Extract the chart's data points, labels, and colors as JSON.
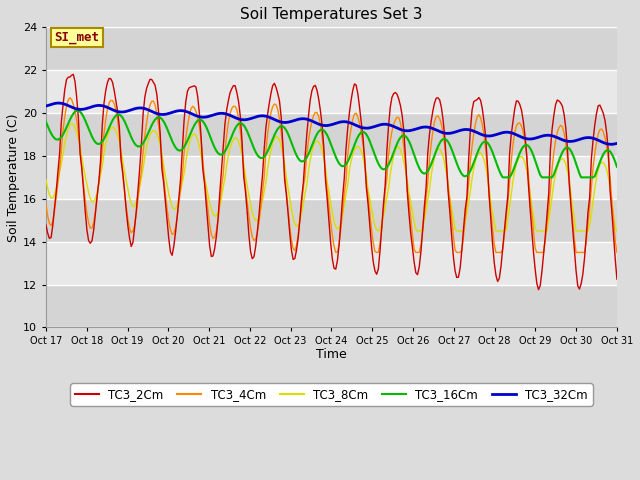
{
  "title": "Soil Temperatures Set 3",
  "xlabel": "Time",
  "ylabel": "Soil Temperature (C)",
  "ylim": [
    10,
    24
  ],
  "yticks": [
    10,
    12,
    14,
    16,
    18,
    20,
    22,
    24
  ],
  "xtick_labels": [
    "Oct 17",
    "Oct 18",
    "Oct 19",
    "Oct 20",
    "Oct 21",
    "Oct 22",
    "Oct 23",
    "Oct 24",
    "Oct 25",
    "Oct 26",
    "Oct 27",
    "Oct 28",
    "Oct 29",
    "Oct 30",
    "Oct 31"
  ],
  "series_colors": {
    "TC3_2Cm": "#CC0000",
    "TC3_4Cm": "#FF8800",
    "TC3_8Cm": "#DDDD00",
    "TC3_16Cm": "#00BB00",
    "TC3_32Cm": "#0000CC"
  },
  "annotation_text": "SI_met",
  "annotation_bg": "#FFFF99",
  "annotation_border": "#999900",
  "bg_color": "#DCDCDC",
  "plot_bg_light": "#E8E8E8",
  "plot_bg_dark": "#D4D4D4",
  "grid_color": "#FFFFFF",
  "n_points": 336
}
